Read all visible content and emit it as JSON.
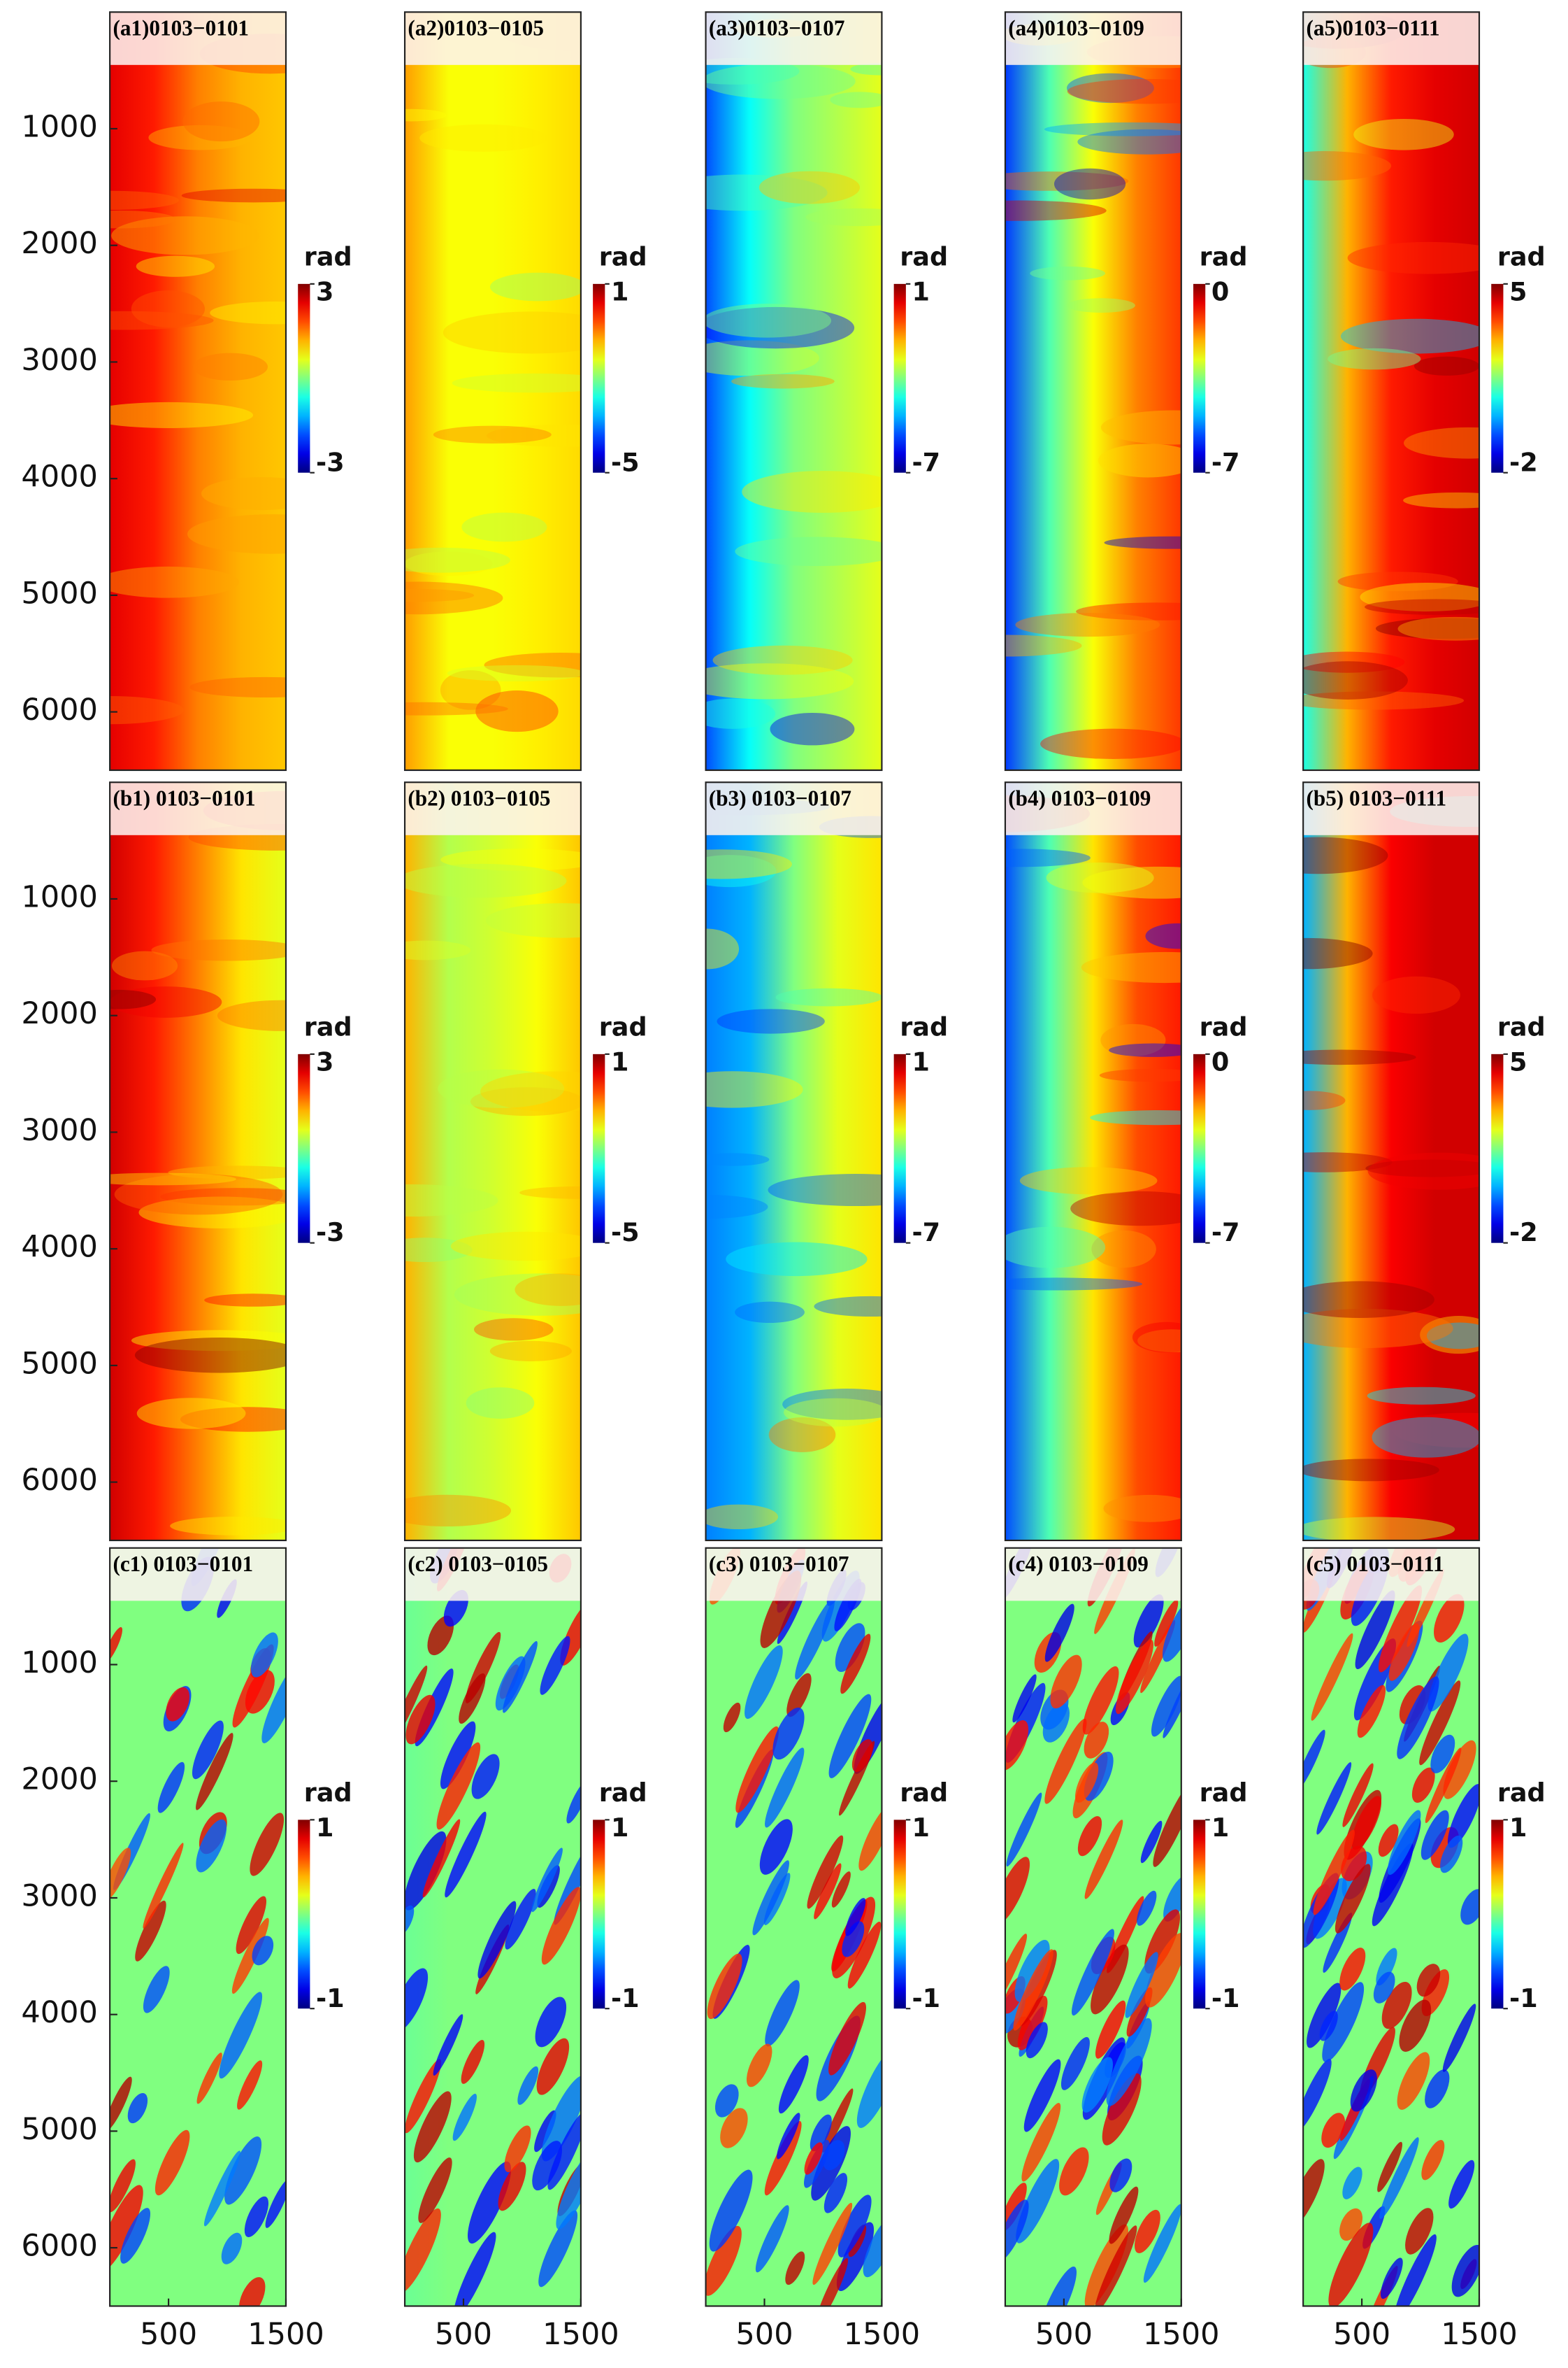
{
  "chart_data": [
    {
      "type": "heatmap",
      "title": "(a1)0103−0101",
      "colorbar_label": "rad",
      "colormap": "jet",
      "clim": [
        -3,
        3
      ],
      "cticks": [
        -3,
        3
      ],
      "xlim": [
        0,
        1500
      ],
      "ylim": [
        0,
        6500
      ],
      "y_inverted": true,
      "yticks": [
        1000,
        2000,
        3000,
        4000,
        5000,
        6000
      ]
    },
    {
      "type": "heatmap",
      "title": "(a2)0103−0105",
      "colorbar_label": "rad",
      "colormap": "jet",
      "clim": [
        -5,
        1
      ],
      "cticks": [
        -5,
        1
      ],
      "xlim": [
        0,
        1500
      ],
      "ylim": [
        0,
        6500
      ],
      "y_inverted": true
    },
    {
      "type": "heatmap",
      "title": "(a3)0103−0107",
      "colorbar_label": "rad",
      "colormap": "jet",
      "clim": [
        -7,
        1
      ],
      "cticks": [
        -7,
        1
      ],
      "xlim": [
        0,
        1500
      ],
      "ylim": [
        0,
        6500
      ],
      "y_inverted": true
    },
    {
      "type": "heatmap",
      "title": "(a4)0103−0109",
      "colorbar_label": "rad",
      "colormap": "jet",
      "clim": [
        -7,
        0
      ],
      "cticks": [
        -7,
        0
      ],
      "xlim": [
        0,
        1500
      ],
      "ylim": [
        0,
        6500
      ],
      "y_inverted": true
    },
    {
      "type": "heatmap",
      "title": "(a5)0103−0111",
      "colorbar_label": "rad",
      "colormap": "jet",
      "clim": [
        -2,
        5
      ],
      "cticks": [
        -2,
        5
      ],
      "xlim": [
        0,
        1500
      ],
      "ylim": [
        0,
        6500
      ],
      "y_inverted": true
    },
    {
      "type": "heatmap",
      "title": "(b1) 0103−0101",
      "colorbar_label": "rad",
      "colormap": "jet",
      "clim": [
        -3,
        3
      ],
      "cticks": [
        -3,
        3
      ],
      "xlim": [
        0,
        1500
      ],
      "ylim": [
        0,
        6500
      ],
      "y_inverted": true,
      "yticks": [
        1000,
        2000,
        3000,
        4000,
        5000,
        6000
      ]
    },
    {
      "type": "heatmap",
      "title": "(b2) 0103−0105",
      "colorbar_label": "rad",
      "colormap": "jet",
      "clim": [
        -5,
        1
      ],
      "cticks": [
        -5,
        1
      ],
      "xlim": [
        0,
        1500
      ],
      "ylim": [
        0,
        6500
      ],
      "y_inverted": true
    },
    {
      "type": "heatmap",
      "title": "(b3) 0103−0107",
      "colorbar_label": "rad",
      "colormap": "jet",
      "clim": [
        -7,
        1
      ],
      "cticks": [
        -7,
        1
      ],
      "xlim": [
        0,
        1500
      ],
      "ylim": [
        0,
        6500
      ],
      "y_inverted": true
    },
    {
      "type": "heatmap",
      "title": "(b4) 0103−0109",
      "colorbar_label": "rad",
      "colormap": "jet",
      "clim": [
        -7,
        0
      ],
      "cticks": [
        -7,
        0
      ],
      "xlim": [
        0,
        1500
      ],
      "ylim": [
        0,
        6500
      ],
      "y_inverted": true
    },
    {
      "type": "heatmap",
      "title": "(b5) 0103−0111",
      "colorbar_label": "rad",
      "colormap": "jet",
      "clim": [
        -2,
        5
      ],
      "cticks": [
        -2,
        5
      ],
      "xlim": [
        0,
        1500
      ],
      "ylim": [
        0,
        6500
      ],
      "y_inverted": true
    },
    {
      "type": "heatmap",
      "title": "(c1)  0103−0101",
      "colorbar_label": "rad",
      "colormap": "jet",
      "clim": [
        -1,
        1
      ],
      "cticks": [
        -1,
        1
      ],
      "xlim": [
        0,
        1500
      ],
      "ylim": [
        0,
        6500
      ],
      "y_inverted": true,
      "yticks": [
        1000,
        2000,
        3000,
        4000,
        5000,
        6000
      ],
      "xticks": [
        500,
        1500
      ]
    },
    {
      "type": "heatmap",
      "title": "(c2)  0103−0105",
      "colorbar_label": "rad",
      "colormap": "jet",
      "clim": [
        -1,
        1
      ],
      "cticks": [
        -1,
        1
      ],
      "xlim": [
        0,
        1500
      ],
      "ylim": [
        0,
        6500
      ],
      "y_inverted": true,
      "xticks": [
        500,
        1500
      ]
    },
    {
      "type": "heatmap",
      "title": "(c3)  0103−0107",
      "colorbar_label": "rad",
      "colormap": "jet",
      "clim": [
        -1,
        1
      ],
      "cticks": [
        -1,
        1
      ],
      "xlim": [
        0,
        1500
      ],
      "ylim": [
        0,
        6500
      ],
      "y_inverted": true,
      "xticks": [
        500,
        1500
      ]
    },
    {
      "type": "heatmap",
      "title": "(c4)  0103−0109",
      "colorbar_label": "rad",
      "colormap": "jet",
      "clim": [
        -1,
        1
      ],
      "cticks": [
        -1,
        1
      ],
      "xlim": [
        0,
        1500
      ],
      "ylim": [
        0,
        6500
      ],
      "y_inverted": true,
      "xticks": [
        500,
        1500
      ]
    },
    {
      "type": "heatmap",
      "title": "(c5)  0103−0111",
      "colorbar_label": "rad",
      "colormap": "jet",
      "clim": [
        -1,
        1
      ],
      "cticks": [
        -1,
        1
      ],
      "xlim": [
        0,
        1500
      ],
      "ylim": [
        0,
        6500
      ],
      "y_inverted": true,
      "xticks": [
        500,
        1500
      ]
    }
  ]
}
